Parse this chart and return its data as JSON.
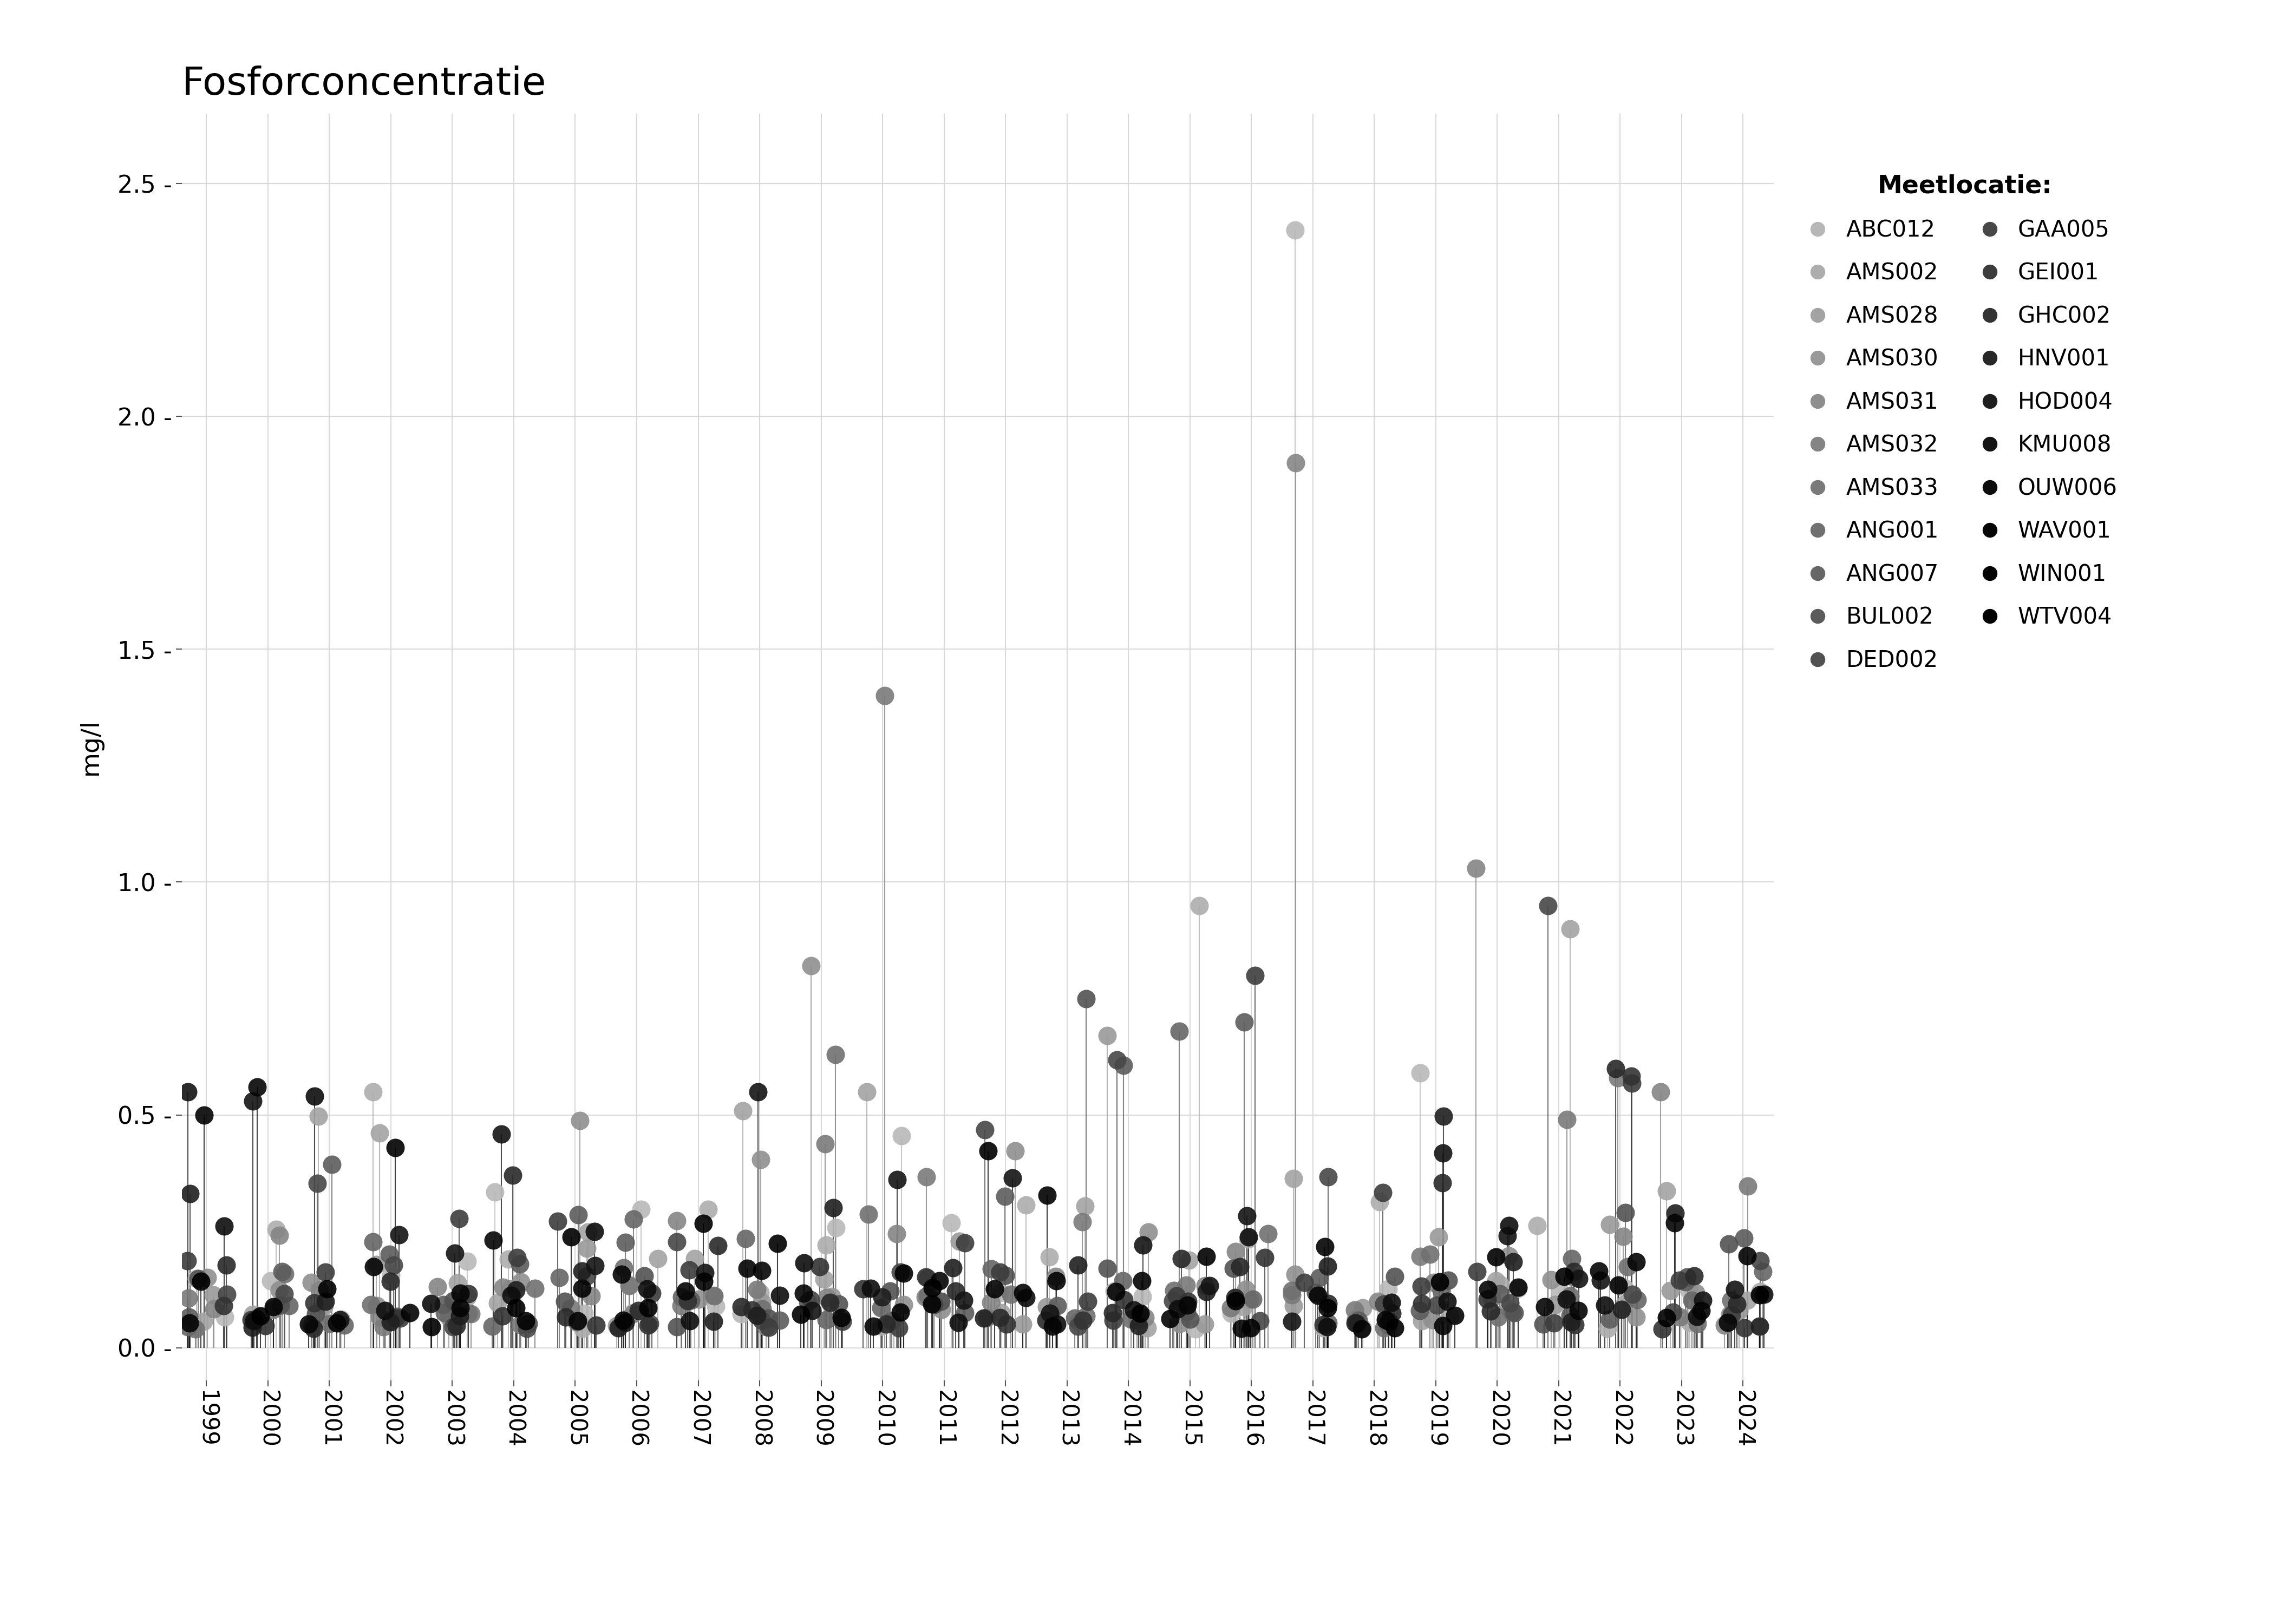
{
  "title": "Fosforconcentratie",
  "ylabel": "mg/l",
  "xlim": [
    1998.6,
    2024.5
  ],
  "ylim": [
    -0.07,
    2.65
  ],
  "yticks": [
    0.0,
    0.5,
    1.0,
    1.5,
    2.0,
    2.5
  ],
  "xticks": [
    1999,
    2000,
    2001,
    2002,
    2003,
    2004,
    2005,
    2006,
    2007,
    2008,
    2009,
    2010,
    2011,
    2012,
    2013,
    2014,
    2015,
    2016,
    2017,
    2018,
    2019,
    2020,
    2021,
    2022,
    2023,
    2024
  ],
  "background_color": "#ffffff",
  "grid_color": "#d9d9d9",
  "legend_title": "Meetlocatie:",
  "locations": [
    "ABC012",
    "AMS002",
    "AMS028",
    "AMS030",
    "AMS031",
    "AMS032",
    "AMS033",
    "ANG001",
    "ANG007",
    "BUL002",
    "DED002",
    "GAA005",
    "GEI001",
    "GHC002",
    "HNV001",
    "HOD004",
    "KMU008",
    "OUW006",
    "WAV001",
    "WIN001",
    "WTV004"
  ],
  "gray_levels": [
    0.72,
    0.68,
    0.64,
    0.6,
    0.56,
    0.52,
    0.48,
    0.44,
    0.4,
    0.36,
    0.32,
    0.28,
    0.24,
    0.2,
    0.16,
    0.12,
    0.08,
    0.05,
    0.02,
    0.01,
    0.0
  ],
  "seed": 42
}
